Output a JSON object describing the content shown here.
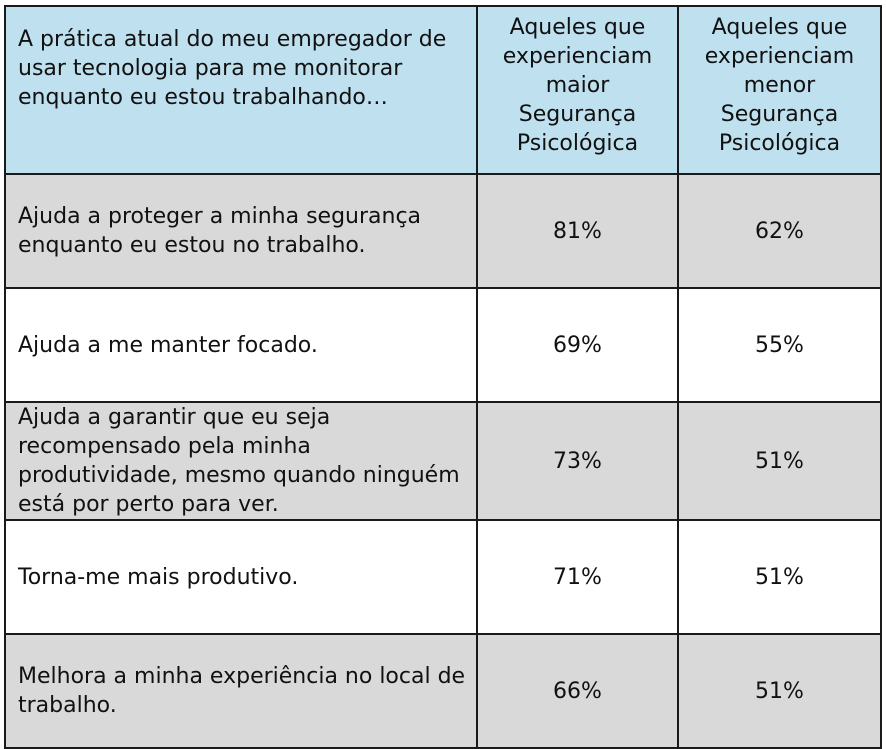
{
  "chart_data": {
    "type": "table",
    "header": {
      "statement": "A prática atual do meu empregador de usar tecnologia para me monitorar enquanto eu estou trabalhando…",
      "columns": [
        "Aqueles que experienciam maior Segurança Psicológica",
        "Aqueles que experienciam menor Segurança Psicológica"
      ]
    },
    "rows": [
      {
        "label": "Ajuda a proteger a minha segurança enquanto eu estou no trabalho.",
        "values": [
          "81%",
          "62%"
        ]
      },
      {
        "label": "Ajuda a me manter focado.",
        "values": [
          "69%",
          "55%"
        ]
      },
      {
        "label": "Ajuda a garantir que eu seja recompensado pela minha produtividade, mesmo quando ninguém está por perto para ver.",
        "values": [
          "73%",
          "51%"
        ]
      },
      {
        "label": "Torna-me mais produtivo.",
        "values": [
          "71%",
          "51%"
        ]
      },
      {
        "label": "Melhora a minha experiência no local de trabalho.",
        "values": [
          "66%",
          "51%"
        ]
      }
    ],
    "colors": {
      "header_fill": "#bfe0ee",
      "shaded_row_fill": "#d9d9d9",
      "plain_row_fill": "#ffffff",
      "border": "#1a1a1a"
    }
  }
}
